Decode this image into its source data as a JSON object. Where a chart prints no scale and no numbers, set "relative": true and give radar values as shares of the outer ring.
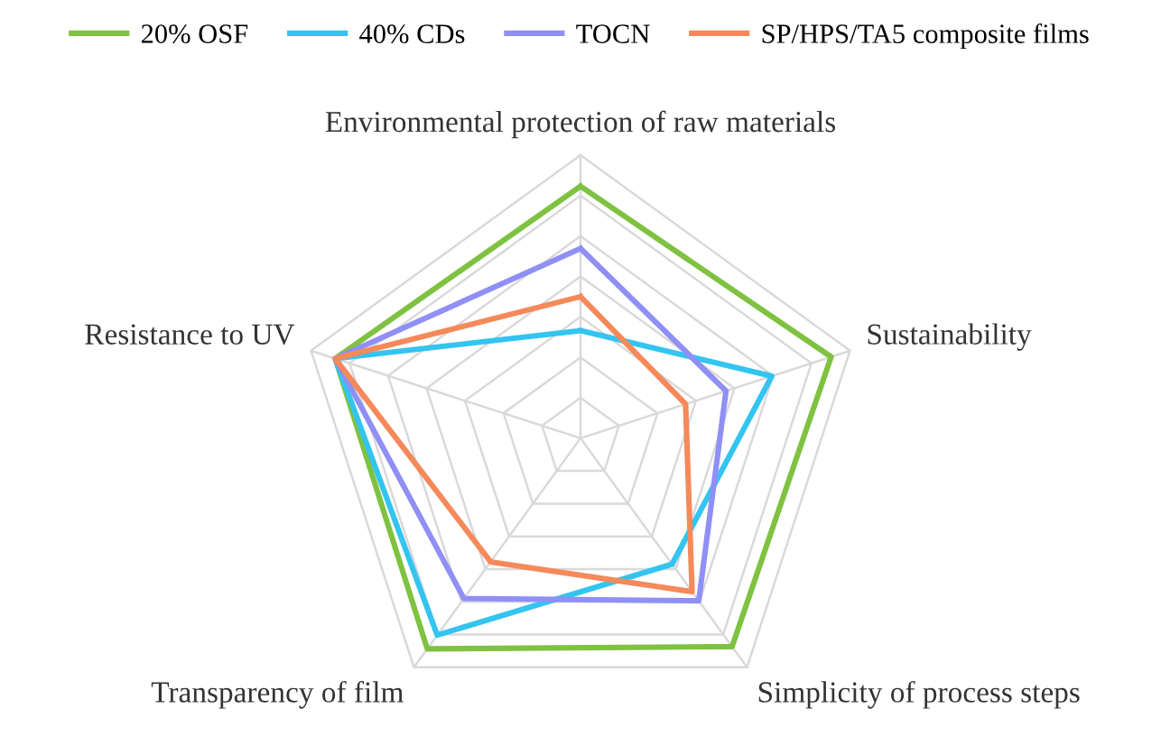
{
  "chart_data": {
    "type": "radar",
    "relative": true,
    "grid": true,
    "legend": "top",
    "categories": [
      "Environmental protection of raw materials",
      "Sustainability",
      "Simplicity of process steps",
      "Transparency of film",
      "Resistance to UV"
    ],
    "series": [
      {
        "name": "20% OSF",
        "color": "#7fc241",
        "values": [
          0.89,
          0.93,
          0.91,
          0.92,
          0.91
        ]
      },
      {
        "name": "40% CDs",
        "color": "#33c4f0",
        "values": [
          0.38,
          0.71,
          0.55,
          0.86,
          0.91
        ]
      },
      {
        "name": "TOCN",
        "color": "#8f8ff5",
        "values": [
          0.67,
          0.54,
          0.71,
          0.7,
          0.91
        ]
      },
      {
        "name": "SP/HPS/TA5 composite films",
        "color": "#f5895a",
        "values": [
          0.5,
          0.39,
          0.67,
          0.54,
          0.91
        ]
      }
    ]
  }
}
